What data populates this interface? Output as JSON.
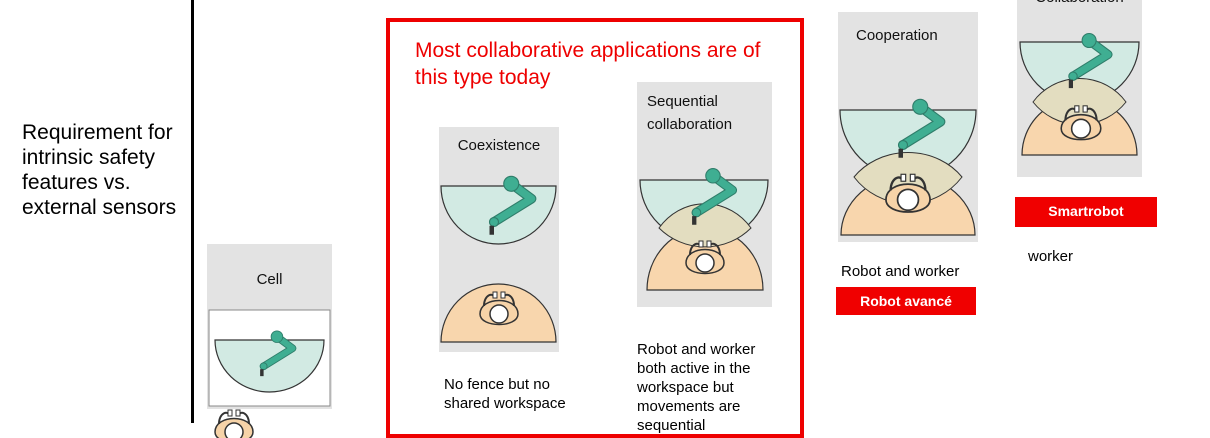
{
  "side_label": "Requirement for intrinsic safety features vs. external sensors",
  "highlight_title": "Most collaborative applications are of this type today",
  "colors": {
    "robot_zone": "#d2eae3",
    "robot_arm": "#3fae92",
    "worker_zone": "#f8d6ad",
    "overlap": "#e3ddc0",
    "highlight": "#ee0000",
    "panel": "#e3e3e3"
  },
  "levels": [
    {
      "title": "Cell",
      "description": ""
    },
    {
      "title": "Coexistence",
      "description": "No fence but no shared workspace"
    },
    {
      "title": "Sequential collaboration",
      "description": "Robot and worker both active in the workspace but movements are sequential"
    },
    {
      "title": "Cooperation",
      "description": "Robot and worker",
      "badge": "Robot avancé"
    },
    {
      "title": "Collaboration",
      "description": "worker",
      "badge": "Smartrobot"
    }
  ]
}
